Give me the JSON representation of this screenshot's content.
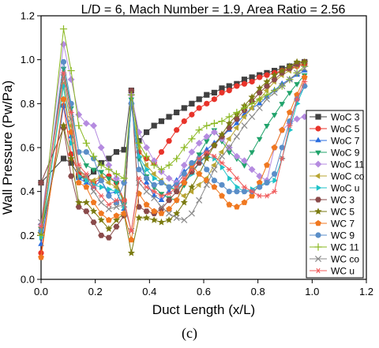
{
  "caption": "(c)",
  "chart_data": {
    "type": "line",
    "title": "L/D = 6, Mach Number = 1.9, Area Ratio = 2.56",
    "xlabel": "Duct Length (x/L)",
    "ylabel": "Wall Pressure (Pw/Pa)",
    "xlim": [
      0.0,
      1.2
    ],
    "ylim": [
      0.0,
      1.2
    ],
    "xticks": [
      "0.0",
      "0.2",
      "0.4",
      "0.6",
      "0.8",
      "1.0",
      "1.2"
    ],
    "yticks": [
      "0.0",
      "0.2",
      "0.4",
      "0.6",
      "0.8",
      "1.0",
      "1.2"
    ],
    "grid": false,
    "legend_position": "right",
    "x": [
      0.0,
      0.083,
      0.111,
      0.139,
      0.167,
      0.194,
      0.222,
      0.25,
      0.278,
      0.306,
      0.333,
      0.361,
      0.389,
      0.417,
      0.444,
      0.472,
      0.5,
      0.528,
      0.556,
      0.583,
      0.611,
      0.639,
      0.667,
      0.694,
      0.722,
      0.75,
      0.778,
      0.806,
      0.833,
      0.861,
      0.889,
      0.917,
      0.944,
      0.972
    ],
    "series": [
      {
        "name": "WoC 3",
        "color": "#404040",
        "marker": "square",
        "values": [
          0.44,
          0.55,
          0.53,
          0.47,
          0.46,
          0.49,
          0.53,
          0.55,
          0.58,
          0.59,
          0.86,
          0.63,
          0.67,
          0.7,
          0.72,
          0.74,
          0.76,
          0.78,
          0.8,
          0.82,
          0.84,
          0.85,
          0.87,
          0.88,
          0.89,
          0.91,
          0.92,
          0.93,
          0.94,
          0.95,
          0.96,
          0.97,
          0.98,
          0.99
        ]
      },
      {
        "name": "WoC 5",
        "color": "#e8332a",
        "marker": "circle",
        "values": [
          0.12,
          0.79,
          0.57,
          0.48,
          0.46,
          0.44,
          0.46,
          0.47,
          0.44,
          0.36,
          0.8,
          0.58,
          0.55,
          0.53,
          0.58,
          0.63,
          0.68,
          0.72,
          0.75,
          0.78,
          0.8,
          0.82,
          0.85,
          0.86,
          0.88,
          0.89,
          0.9,
          0.92,
          0.93,
          0.94,
          0.95,
          0.96,
          0.97,
          0.98
        ]
      },
      {
        "name": "WoC 7",
        "color": "#2a6de0",
        "marker": "triangle-up",
        "values": [
          0.16,
          0.79,
          0.65,
          0.46,
          0.44,
          0.42,
          0.45,
          0.39,
          0.4,
          0.32,
          0.81,
          0.56,
          0.44,
          0.38,
          0.36,
          0.4,
          0.45,
          0.49,
          0.52,
          0.56,
          0.59,
          0.62,
          0.65,
          0.68,
          0.71,
          0.75,
          0.78,
          0.8,
          0.83,
          0.86,
          0.89,
          0.91,
          0.93,
          0.95
        ]
      },
      {
        "name": "WoC 9",
        "color": "#20a36b",
        "marker": "triangle-down",
        "values": [
          0.23,
          0.96,
          0.78,
          0.58,
          0.52,
          0.5,
          0.49,
          0.46,
          0.44,
          0.34,
          0.82,
          0.55,
          0.47,
          0.42,
          0.39,
          0.37,
          0.36,
          0.43,
          0.5,
          0.57,
          0.63,
          0.68,
          0.63,
          0.58,
          0.55,
          0.52,
          0.58,
          0.64,
          0.7,
          0.75,
          0.8,
          0.85,
          0.89,
          0.93
        ]
      },
      {
        "name": "WoC 11",
        "color": "#b58be0",
        "marker": "diamond",
        "values": [
          0.25,
          1.07,
          0.91,
          0.75,
          0.71,
          0.7,
          0.6,
          0.52,
          0.46,
          0.44,
          0.84,
          0.67,
          0.6,
          0.54,
          0.49,
          0.46,
          0.44,
          0.52,
          0.58,
          0.62,
          0.65,
          0.67,
          0.64,
          0.6,
          0.56,
          0.54,
          0.5,
          0.47,
          0.45,
          0.6,
          0.68,
          0.71,
          0.73,
          0.74
        ]
      },
      {
        "name": "WoC co",
        "color": "#b8a532",
        "marker": "triangle-left",
        "values": [
          0.21,
          0.89,
          0.7,
          0.5,
          0.46,
          0.45,
          0.47,
          0.44,
          0.42,
          0.36,
          0.8,
          0.6,
          0.52,
          0.48,
          0.45,
          0.42,
          0.4,
          0.38,
          0.4,
          0.43,
          0.46,
          0.52,
          0.58,
          0.64,
          0.69,
          0.74,
          0.78,
          0.82,
          0.86,
          0.9,
          0.93,
          0.95,
          0.97,
          0.99
        ]
      },
      {
        "name": "WoC u",
        "color": "#1fc2c8",
        "marker": "triangle-right",
        "values": [
          0.19,
          0.88,
          0.62,
          0.47,
          0.45,
          0.43,
          0.42,
          0.41,
          0.4,
          0.33,
          0.8,
          0.56,
          0.5,
          0.46,
          0.44,
          0.42,
          0.41,
          0.44,
          0.48,
          0.53,
          0.56,
          0.55,
          0.51,
          0.46,
          0.42,
          0.4,
          0.41,
          0.43,
          0.44,
          0.45,
          0.55,
          0.68,
          0.8,
          0.88
        ]
      },
      {
        "name": "WC 3",
        "color": "#8a4a4a",
        "marker": "hexagon",
        "values": [
          0.44,
          0.69,
          0.47,
          0.33,
          0.31,
          0.26,
          0.2,
          0.19,
          0.24,
          0.29,
          0.86,
          0.33,
          0.31,
          0.3,
          0.32,
          0.36,
          0.4,
          0.44,
          0.49,
          0.53,
          0.57,
          0.61,
          0.65,
          0.69,
          0.73,
          0.77,
          0.81,
          0.85,
          0.88,
          0.91,
          0.94,
          0.96,
          0.98,
          0.99
        ]
      },
      {
        "name": "WC 5",
        "color": "#7a7a10",
        "marker": "star",
        "values": [
          0.21,
          0.7,
          0.55,
          0.35,
          0.35,
          0.31,
          0.27,
          0.23,
          0.27,
          0.3,
          0.12,
          0.28,
          0.28,
          0.27,
          0.26,
          0.27,
          0.3,
          0.35,
          0.42,
          0.48,
          0.55,
          0.61,
          0.66,
          0.71,
          0.75,
          0.79,
          0.83,
          0.87,
          0.9,
          0.93,
          0.95,
          0.97,
          0.99,
          0.99
        ]
      },
      {
        "name": "WC 7",
        "color": "#f07820",
        "marker": "pentagon",
        "values": [
          0.1,
          0.82,
          0.67,
          0.44,
          0.42,
          0.35,
          0.3,
          0.27,
          0.29,
          0.3,
          0.18,
          0.39,
          0.34,
          0.31,
          0.3,
          0.32,
          0.36,
          0.44,
          0.52,
          0.48,
          0.45,
          0.42,
          0.38,
          0.34,
          0.33,
          0.35,
          0.38,
          0.44,
          0.52,
          0.6,
          0.68,
          0.76,
          0.84,
          0.92
        ]
      },
      {
        "name": "WC 9",
        "color": "#5a8ec8",
        "marker": "circle",
        "values": [
          0.22,
          0.99,
          0.8,
          0.58,
          0.58,
          0.55,
          0.45,
          0.38,
          0.35,
          0.44,
          0.8,
          0.5,
          0.46,
          0.43,
          0.44,
          0.42,
          0.43,
          0.48,
          0.53,
          0.55,
          0.5,
          0.45,
          0.43,
          0.4,
          0.4,
          0.4,
          0.4,
          0.42,
          0.44,
          0.48,
          0.6,
          0.72,
          0.82,
          0.88
        ]
      },
      {
        "name": "WC 11",
        "color": "#8ab820",
        "marker": "plus",
        "values": [
          0.2,
          1.14,
          0.95,
          0.7,
          0.62,
          0.56,
          0.52,
          0.5,
          0.48,
          0.46,
          0.84,
          0.62,
          0.56,
          0.52,
          0.5,
          0.52,
          0.55,
          0.6,
          0.64,
          0.68,
          0.7,
          0.71,
          0.72,
          0.74,
          0.76,
          0.78,
          0.8,
          0.82,
          0.84,
          0.86,
          0.88,
          0.91,
          0.94,
          0.97
        ]
      },
      {
        "name": "WC co",
        "color": "#8a8a8a",
        "marker": "cross",
        "values": [
          0.26,
          0.92,
          0.73,
          0.5,
          0.47,
          0.4,
          0.35,
          0.32,
          0.33,
          0.34,
          0.22,
          0.44,
          0.4,
          0.37,
          0.33,
          0.3,
          0.28,
          0.27,
          0.3,
          0.36,
          0.43,
          0.5,
          0.56,
          0.6,
          0.65,
          0.7,
          0.74,
          0.78,
          0.82,
          0.85,
          0.88,
          0.91,
          0.94,
          0.96
        ]
      },
      {
        "name": "WC u",
        "color": "#f05a5a",
        "marker": "asterisk",
        "values": [
          0.24,
          0.94,
          0.76,
          0.52,
          0.48,
          0.42,
          0.38,
          0.34,
          0.36,
          0.36,
          0.22,
          0.46,
          0.42,
          0.4,
          0.38,
          0.39,
          0.42,
          0.46,
          0.5,
          0.55,
          0.58,
          0.56,
          0.53,
          0.5,
          0.46,
          0.42,
          0.4,
          0.38,
          0.38,
          0.4,
          0.55,
          0.7,
          0.82,
          0.9
        ]
      }
    ]
  }
}
